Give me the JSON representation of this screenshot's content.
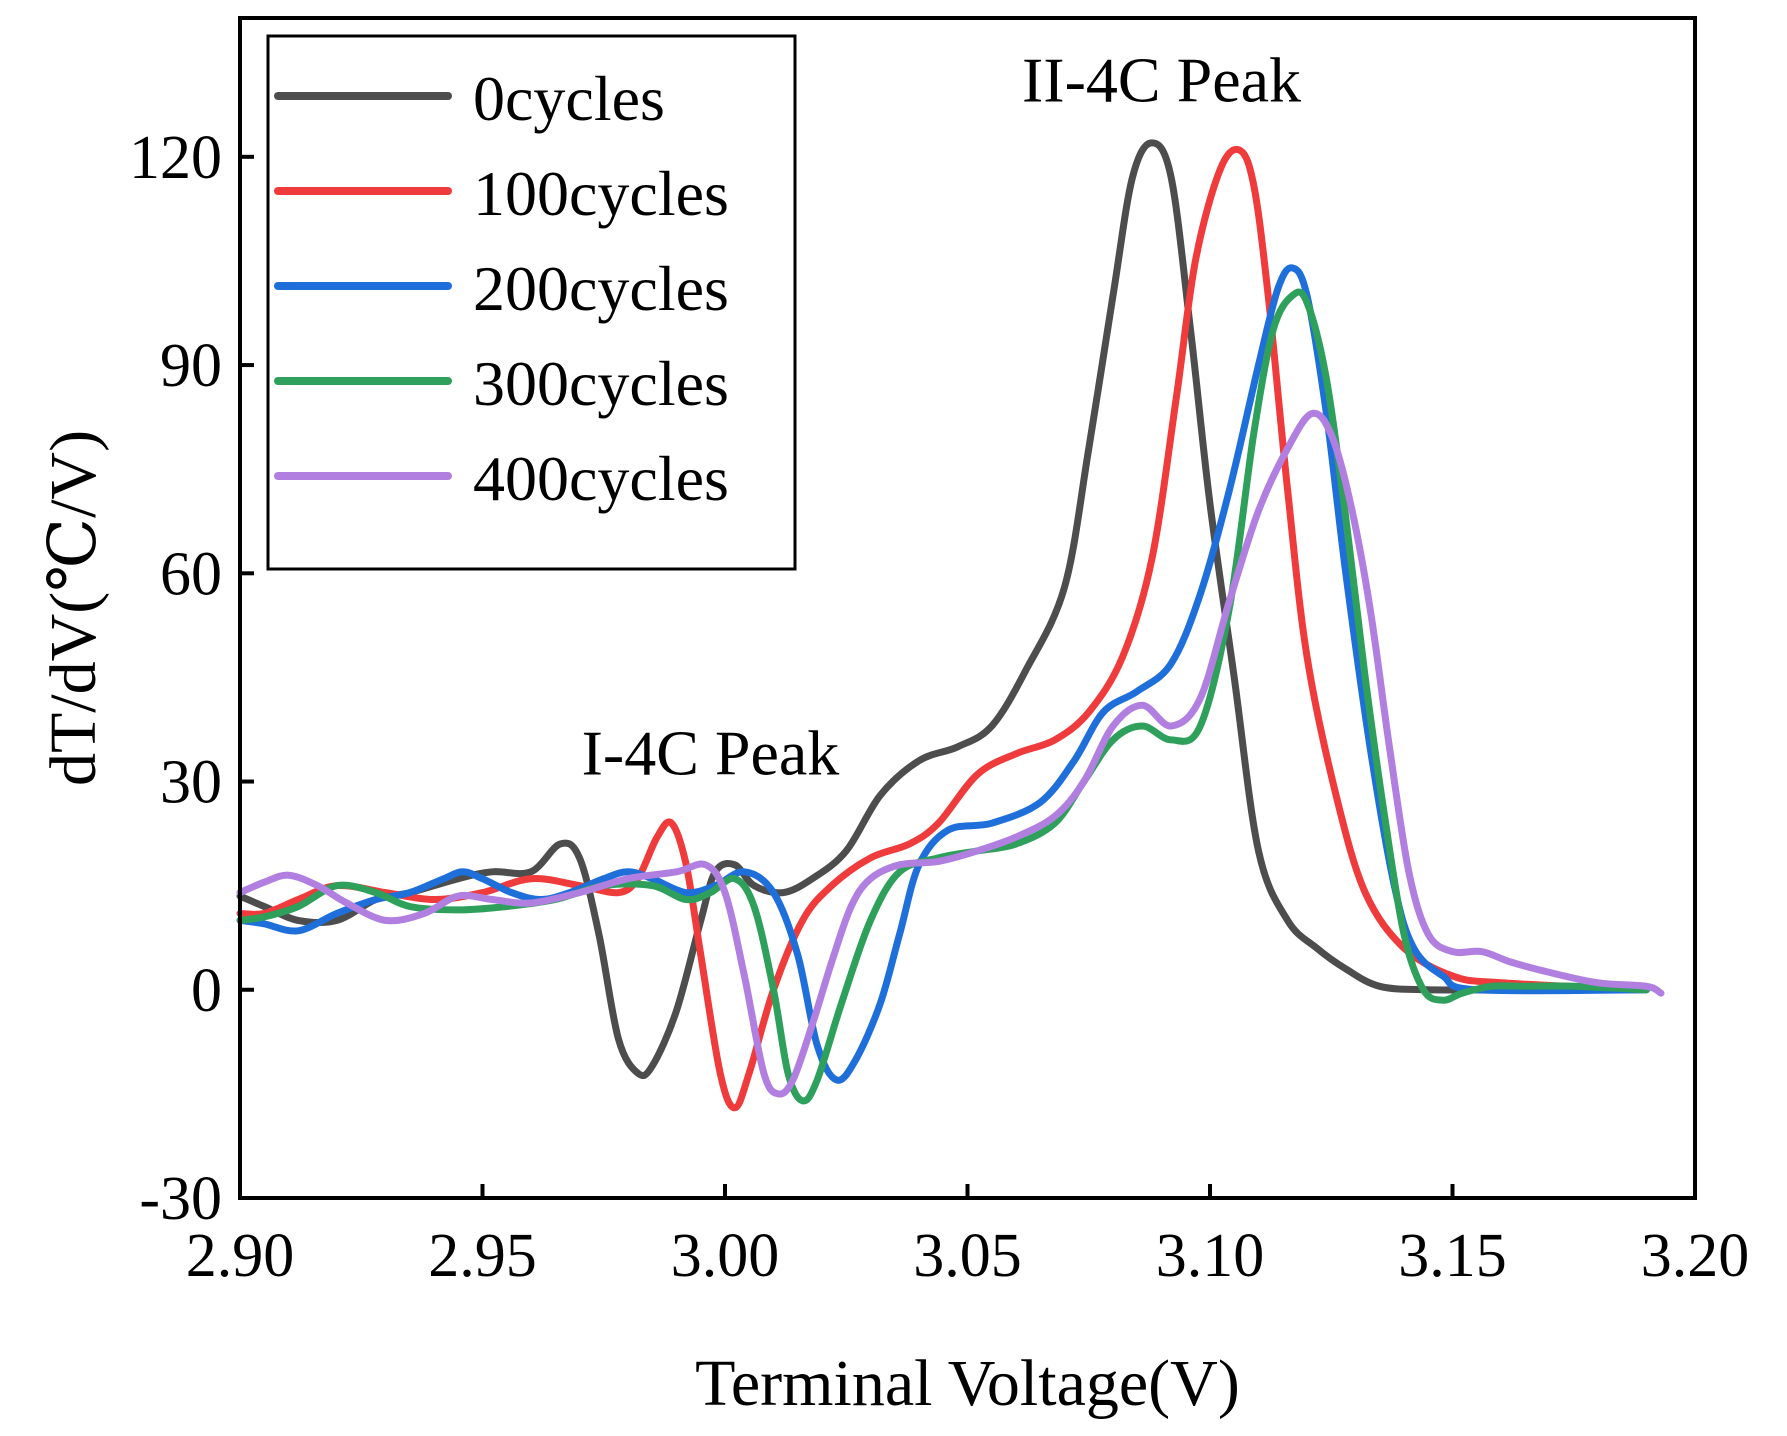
{
  "chart_data": {
    "type": "line",
    "xlabel": "Terminal Voltage(V)",
    "ylabel": "dT/dV(℃/V)",
    "xlim": [
      2.9,
      3.2
    ],
    "ylim": [
      -30,
      140
    ],
    "x_ticks": [
      "2.90",
      "2.95",
      "3.00",
      "3.05",
      "3.10",
      "3.15",
      "3.20"
    ],
    "y_ticks": [
      "-30",
      "0",
      "30",
      "60",
      "90",
      "120"
    ],
    "grid": false,
    "legend_position": "top-left",
    "annotations": [
      {
        "text": "I-4C Peak",
        "x": 2.997,
        "y": 31
      },
      {
        "text": "II-4C Peak",
        "x": 3.09,
        "y": 128
      }
    ],
    "series": [
      {
        "name": "0cycles",
        "color": "#4d4d4d",
        "points": [
          [
            2.9,
            13.5
          ],
          [
            2.905,
            12
          ],
          [
            2.912,
            10
          ],
          [
            2.92,
            10
          ],
          [
            2.928,
            13
          ],
          [
            2.935,
            14
          ],
          [
            2.945,
            16
          ],
          [
            2.952,
            17
          ],
          [
            2.96,
            17
          ],
          [
            2.966,
            21
          ],
          [
            2.97,
            19
          ],
          [
            2.974,
            8
          ],
          [
            2.978,
            -7
          ],
          [
            2.982,
            -12
          ],
          [
            2.985,
            -11
          ],
          [
            2.99,
            -3
          ],
          [
            2.995,
            10
          ],
          [
            2.998,
            17
          ],
          [
            3.002,
            18
          ],
          [
            3.006,
            15
          ],
          [
            3.012,
            14
          ],
          [
            3.018,
            16
          ],
          [
            3.025,
            20
          ],
          [
            3.032,
            28
          ],
          [
            3.04,
            33
          ],
          [
            3.048,
            35
          ],
          [
            3.055,
            38
          ],
          [
            3.062,
            46
          ],
          [
            3.07,
            58
          ],
          [
            3.075,
            78
          ],
          [
            3.08,
            100
          ],
          [
            3.084,
            117
          ],
          [
            3.088,
            122
          ],
          [
            3.092,
            117
          ],
          [
            3.096,
            95
          ],
          [
            3.1,
            70
          ],
          [
            3.105,
            45
          ],
          [
            3.11,
            20
          ],
          [
            3.116,
            10
          ],
          [
            3.122,
            6
          ],
          [
            3.128,
            3
          ],
          [
            3.135,
            0.5
          ],
          [
            3.145,
            0
          ],
          [
            3.16,
            0
          ],
          [
            3.19,
            0
          ]
        ]
      },
      {
        "name": "100cycles",
        "color": "#ef3b3b",
        "points": [
          [
            2.9,
            11
          ],
          [
            2.905,
            11
          ],
          [
            2.912,
            13
          ],
          [
            2.92,
            15
          ],
          [
            2.93,
            14
          ],
          [
            2.94,
            13
          ],
          [
            2.95,
            14
          ],
          [
            2.96,
            16
          ],
          [
            2.97,
            15
          ],
          [
            2.978,
            14
          ],
          [
            2.982,
            16
          ],
          [
            2.986,
            22
          ],
          [
            2.989,
            24
          ],
          [
            2.992,
            18
          ],
          [
            2.995,
            5
          ],
          [
            2.999,
            -12
          ],
          [
            3.002,
            -17
          ],
          [
            3.005,
            -12
          ],
          [
            3.01,
            0
          ],
          [
            3.016,
            10
          ],
          [
            3.022,
            15
          ],
          [
            3.03,
            19
          ],
          [
            3.038,
            21
          ],
          [
            3.044,
            24
          ],
          [
            3.052,
            31
          ],
          [
            3.06,
            34
          ],
          [
            3.068,
            36
          ],
          [
            3.075,
            40
          ],
          [
            3.082,
            48
          ],
          [
            3.088,
            62
          ],
          [
            3.093,
            85
          ],
          [
            3.097,
            105
          ],
          [
            3.102,
            118
          ],
          [
            3.106,
            121
          ],
          [
            3.109,
            116
          ],
          [
            3.112,
            100
          ],
          [
            3.116,
            72
          ],
          [
            3.12,
            48
          ],
          [
            3.126,
            28
          ],
          [
            3.132,
            14
          ],
          [
            3.14,
            6
          ],
          [
            3.15,
            2
          ],
          [
            3.16,
            1
          ],
          [
            3.19,
            0
          ]
        ]
      },
      {
        "name": "200cycles",
        "color": "#1f6fdb",
        "points": [
          [
            2.9,
            10
          ],
          [
            2.905,
            9.5
          ],
          [
            2.912,
            8.5
          ],
          [
            2.92,
            11
          ],
          [
            2.928,
            13
          ],
          [
            2.935,
            14
          ],
          [
            2.942,
            16
          ],
          [
            2.946,
            17
          ],
          [
            2.95,
            16
          ],
          [
            2.956,
            14
          ],
          [
            2.962,
            13
          ],
          [
            2.968,
            14
          ],
          [
            2.975,
            16
          ],
          [
            2.98,
            17
          ],
          [
            2.985,
            16
          ],
          [
            2.992,
            14
          ],
          [
            2.998,
            15
          ],
          [
            3.004,
            17
          ],
          [
            3.01,
            14
          ],
          [
            3.015,
            5
          ],
          [
            3.019,
            -8
          ],
          [
            3.023,
            -13
          ],
          [
            3.027,
            -10
          ],
          [
            3.032,
            -2
          ],
          [
            3.036,
            8
          ],
          [
            3.04,
            18
          ],
          [
            3.046,
            23
          ],
          [
            3.055,
            24
          ],
          [
            3.065,
            27
          ],
          [
            3.072,
            33
          ],
          [
            3.078,
            40
          ],
          [
            3.085,
            43
          ],
          [
            3.092,
            47
          ],
          [
            3.098,
            57
          ],
          [
            3.104,
            72
          ],
          [
            3.11,
            90
          ],
          [
            3.114,
            101
          ],
          [
            3.117,
            104
          ],
          [
            3.12,
            100
          ],
          [
            3.124,
            83
          ],
          [
            3.128,
            60
          ],
          [
            3.133,
            35
          ],
          [
            3.138,
            15
          ],
          [
            3.142,
            6
          ],
          [
            3.148,
            2
          ],
          [
            3.155,
            0
          ],
          [
            3.19,
            0
          ]
        ]
      },
      {
        "name": "300cycles",
        "color": "#2ea05b",
        "points": [
          [
            2.9,
            10
          ],
          [
            2.905,
            10.5
          ],
          [
            2.912,
            12
          ],
          [
            2.92,
            15
          ],
          [
            2.928,
            14
          ],
          [
            2.935,
            12
          ],
          [
            2.945,
            11.5
          ],
          [
            2.955,
            12
          ],
          [
            2.965,
            13
          ],
          [
            2.975,
            15
          ],
          [
            2.985,
            15
          ],
          [
            2.992,
            13
          ],
          [
            2.997,
            14
          ],
          [
            3.002,
            16
          ],
          [
            3.006,
            12
          ],
          [
            3.01,
            0
          ],
          [
            3.013,
            -12
          ],
          [
            3.016,
            -16
          ],
          [
            3.019,
            -13
          ],
          [
            3.024,
            -2
          ],
          [
            3.03,
            10
          ],
          [
            3.036,
            17
          ],
          [
            3.044,
            19
          ],
          [
            3.052,
            20
          ],
          [
            3.06,
            21
          ],
          [
            3.068,
            24
          ],
          [
            3.074,
            30
          ],
          [
            3.08,
            36
          ],
          [
            3.086,
            38
          ],
          [
            3.092,
            36
          ],
          [
            3.098,
            38
          ],
          [
            3.104,
            55
          ],
          [
            3.109,
            80
          ],
          [
            3.113,
            95
          ],
          [
            3.117,
            100
          ],
          [
            3.12,
            99
          ],
          [
            3.124,
            88
          ],
          [
            3.128,
            68
          ],
          [
            3.132,
            45
          ],
          [
            3.136,
            25
          ],
          [
            3.14,
            8
          ],
          [
            3.144,
            0
          ],
          [
            3.148,
            -1.5
          ],
          [
            3.152,
            -0.5
          ],
          [
            3.158,
            0.5
          ],
          [
            3.165,
            0.5
          ],
          [
            3.175,
            0.5
          ],
          [
            3.19,
            0
          ]
        ]
      },
      {
        "name": "400cycles",
        "color": "#b07fe0",
        "points": [
          [
            2.9,
            14
          ],
          [
            2.905,
            15.5
          ],
          [
            2.91,
            16.5
          ],
          [
            2.916,
            15
          ],
          [
            2.922,
            12.5
          ],
          [
            2.93,
            10
          ],
          [
            2.938,
            11
          ],
          [
            2.945,
            13.5
          ],
          [
            2.952,
            13
          ],
          [
            2.96,
            12.5
          ],
          [
            2.97,
            14
          ],
          [
            2.98,
            16
          ],
          [
            2.99,
            17
          ],
          [
            2.996,
            18
          ],
          [
            3.0,
            14
          ],
          [
            3.004,
            2
          ],
          [
            3.008,
            -12
          ],
          [
            3.011,
            -15
          ],
          [
            3.014,
            -13
          ],
          [
            3.018,
            -5
          ],
          [
            3.022,
            4
          ],
          [
            3.026,
            12
          ],
          [
            3.03,
            16
          ],
          [
            3.036,
            18
          ],
          [
            3.044,
            18.5
          ],
          [
            3.052,
            20
          ],
          [
            3.06,
            22
          ],
          [
            3.068,
            25
          ],
          [
            3.074,
            30
          ],
          [
            3.08,
            38
          ],
          [
            3.086,
            41
          ],
          [
            3.092,
            38
          ],
          [
            3.098,
            42
          ],
          [
            3.104,
            56
          ],
          [
            3.11,
            69
          ],
          [
            3.116,
            78
          ],
          [
            3.121,
            83
          ],
          [
            3.125,
            80
          ],
          [
            3.129,
            70
          ],
          [
            3.133,
            55
          ],
          [
            3.137,
            35
          ],
          [
            3.141,
            17
          ],
          [
            3.145,
            8
          ],
          [
            3.15,
            5.5
          ],
          [
            3.156,
            5.5
          ],
          [
            3.162,
            4
          ],
          [
            3.17,
            2.5
          ],
          [
            3.18,
            1
          ],
          [
            3.19,
            0.5
          ],
          [
            3.193,
            -0.5
          ]
        ]
      }
    ]
  }
}
